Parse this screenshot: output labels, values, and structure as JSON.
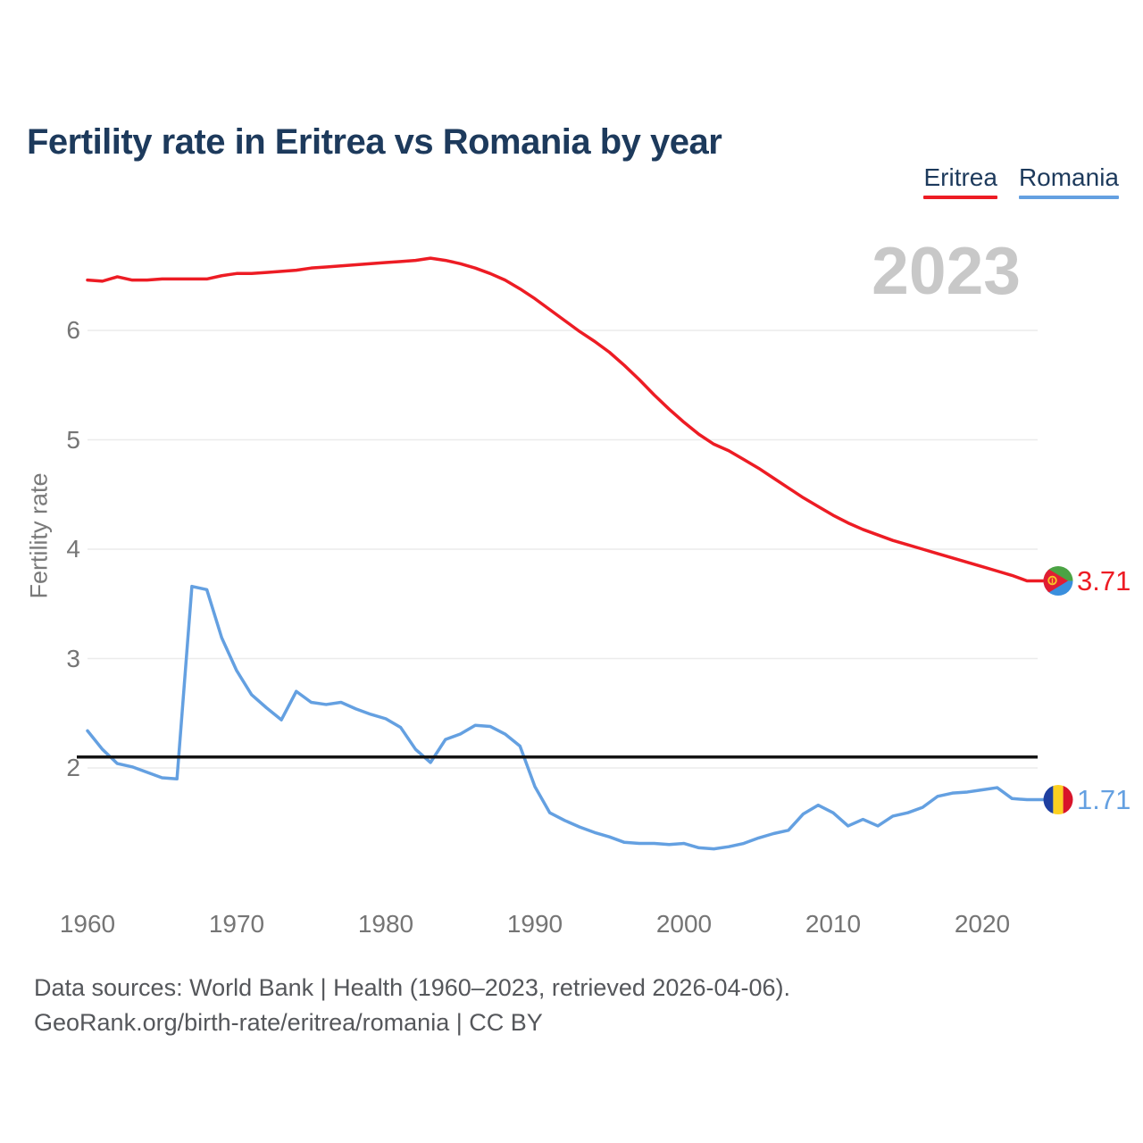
{
  "title": "Fertility rate in Eritrea vs Romania by year",
  "legend": {
    "items": [
      {
        "label": "Eritrea",
        "color": "#ed1c24"
      },
      {
        "label": "Romania",
        "color": "#64a0e1"
      }
    ]
  },
  "watermark_year": "2023",
  "axis": {
    "y_label": "Fertility rate",
    "y_ticks": [
      2,
      3,
      4,
      5,
      6
    ],
    "x_ticks": [
      1960,
      1970,
      1980,
      1990,
      2000,
      2010,
      2020
    ]
  },
  "reference_line": {
    "value": 2.1,
    "color": "#141414"
  },
  "end_labels": {
    "eritrea": "3.71",
    "romania": "1.71"
  },
  "footer": {
    "line1": "Data sources: World Bank | Health (1960–2023, retrieved 2026-04-06).",
    "line2": "GeoRank.org/birth-rate/eritrea/romania | CC BY"
  },
  "chart_data": {
    "type": "line",
    "title": "Fertility rate in Eritrea vs Romania by year",
    "xlabel": "",
    "ylabel": "Fertility rate",
    "xlim": [
      1960,
      2023
    ],
    "ylim": [
      1.1,
      6.9
    ],
    "grid": "horizontal",
    "legend_position": "top-right",
    "annotations": {
      "watermark": "2023",
      "reference_line_y": 2.1
    },
    "x": [
      1960,
      1961,
      1962,
      1963,
      1964,
      1965,
      1966,
      1967,
      1968,
      1969,
      1970,
      1971,
      1972,
      1973,
      1974,
      1975,
      1976,
      1977,
      1978,
      1979,
      1980,
      1981,
      1982,
      1983,
      1984,
      1985,
      1986,
      1987,
      1988,
      1989,
      1990,
      1991,
      1992,
      1993,
      1994,
      1995,
      1996,
      1997,
      1998,
      1999,
      2000,
      2001,
      2002,
      2003,
      2004,
      2005,
      2006,
      2007,
      2008,
      2009,
      2010,
      2011,
      2012,
      2013,
      2014,
      2015,
      2016,
      2017,
      2018,
      2019,
      2020,
      2021,
      2022,
      2023
    ],
    "series": [
      {
        "name": "Eritrea",
        "color": "#ed1c24",
        "end_value": 3.71,
        "values": [
          6.46,
          6.45,
          6.49,
          6.46,
          6.46,
          6.47,
          6.47,
          6.47,
          6.47,
          6.5,
          6.52,
          6.52,
          6.53,
          6.54,
          6.55,
          6.57,
          6.58,
          6.59,
          6.6,
          6.61,
          6.62,
          6.63,
          6.64,
          6.66,
          6.64,
          6.61,
          6.57,
          6.52,
          6.46,
          6.38,
          6.29,
          6.19,
          6.09,
          5.99,
          5.9,
          5.8,
          5.68,
          5.55,
          5.41,
          5.28,
          5.16,
          5.05,
          4.96,
          4.9,
          4.82,
          4.74,
          4.65,
          4.56,
          4.47,
          4.39,
          4.31,
          4.24,
          4.18,
          4.13,
          4.08,
          4.04,
          4.0,
          3.96,
          3.92,
          3.88,
          3.84,
          3.8,
          3.76,
          3.71
        ]
      },
      {
        "name": "Romania",
        "color": "#64a0e1",
        "end_value": 1.71,
        "values": [
          2.34,
          2.17,
          2.04,
          2.01,
          1.96,
          1.91,
          1.9,
          3.66,
          3.63,
          3.19,
          2.89,
          2.67,
          2.55,
          2.44,
          2.7,
          2.6,
          2.58,
          2.6,
          2.54,
          2.49,
          2.45,
          2.37,
          2.17,
          2.05,
          2.26,
          2.31,
          2.39,
          2.38,
          2.31,
          2.2,
          1.83,
          1.59,
          1.52,
          1.46,
          1.41,
          1.37,
          1.32,
          1.31,
          1.31,
          1.3,
          1.31,
          1.27,
          1.26,
          1.28,
          1.31,
          1.36,
          1.4,
          1.43,
          1.58,
          1.66,
          1.59,
          1.47,
          1.53,
          1.47,
          1.56,
          1.59,
          1.64,
          1.74,
          1.77,
          1.78,
          1.8,
          1.82,
          1.72,
          1.71
        ]
      }
    ]
  }
}
